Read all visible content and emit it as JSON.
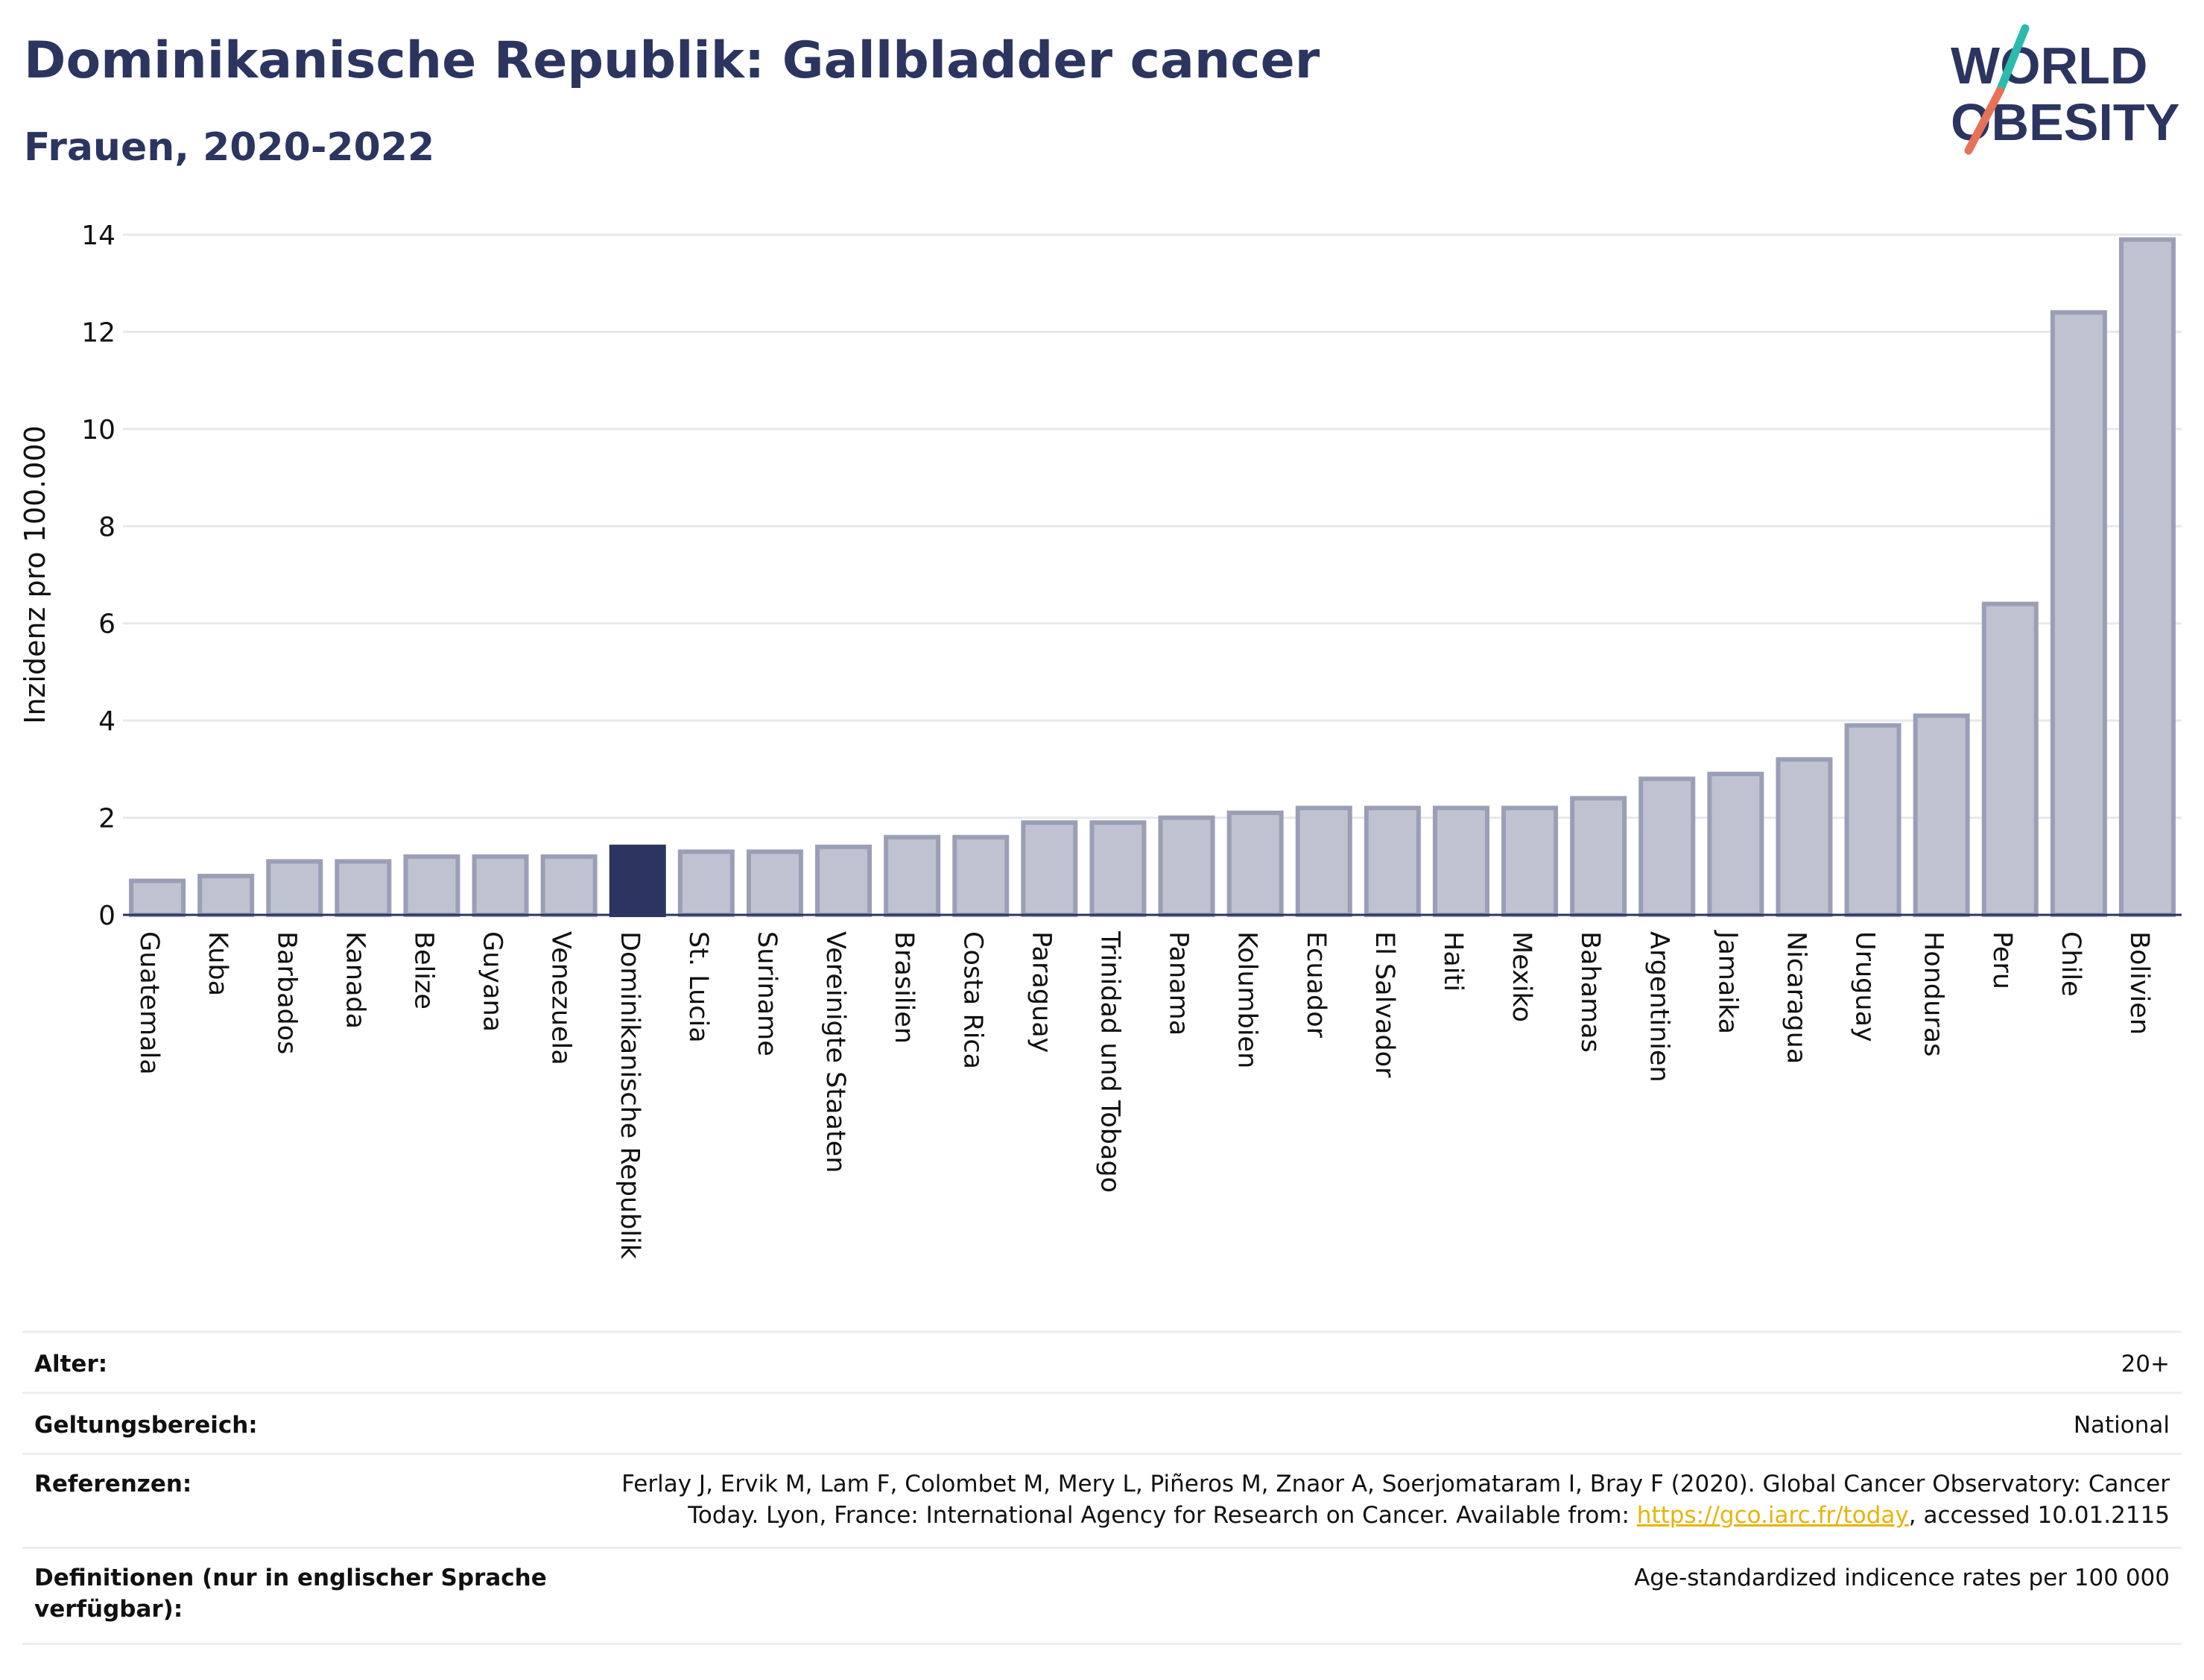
{
  "title": "Dominikanische Republik: Gallbladder cancer",
  "subtitle": "Frauen, 2020-2022",
  "logo": {
    "line1": "WORLD",
    "line2": "OBESITY"
  },
  "colors": {
    "highlight": "#2b3560",
    "bar": "#bfc2d0",
    "bar_border": "#9a9fb6",
    "accent_teal": "#2bbbad",
    "accent_coral": "#e8715a"
  },
  "chart_data": {
    "type": "bar",
    "ylabel": "Inzidenz pro 100.000",
    "xlabel": "",
    "ylim": [
      0,
      14
    ],
    "yticks": [
      0,
      2,
      4,
      6,
      8,
      10,
      12,
      14
    ],
    "grid": true,
    "highlight": "Dominikanische Republik",
    "categories": [
      "Guatemala",
      "Kuba",
      "Barbados",
      "Kanada",
      "Belize",
      "Guyana",
      "Venezuela",
      "Dominikanische Republik",
      "St. Lucia",
      "Suriname",
      "Vereinigte Staaten",
      "Brasilien",
      "Costa Rica",
      "Paraguay",
      "Trinidad und Tobago",
      "Panama",
      "Kolumbien",
      "Ecuador",
      "El Salvador",
      "Haiti",
      "Mexiko",
      "Bahamas",
      "Argentinien",
      "Jamaika",
      "Nicaragua",
      "Uruguay",
      "Honduras",
      "Peru",
      "Chile",
      "Bolivien"
    ],
    "values": [
      0.7,
      0.8,
      1.1,
      1.1,
      1.2,
      1.2,
      1.2,
      1.4,
      1.3,
      1.3,
      1.4,
      1.6,
      1.6,
      1.9,
      1.9,
      2.0,
      2.1,
      2.2,
      2.2,
      2.2,
      2.2,
      2.4,
      2.8,
      2.9,
      3.2,
      3.9,
      4.1,
      6.4,
      12.4,
      13.9
    ]
  },
  "meta": {
    "age_label": "Alter:",
    "age_value": "20+",
    "scope_label": "Geltungsbereich:",
    "scope_value": "National",
    "ref_label": "Referenzen:",
    "ref_line1": "Ferlay J, Ervik M, Lam F, Colombet M, Mery L, Piñeros M, Znaor A, Soerjomataram I, Bray F (2020). Global Cancer Observatory: Cancer",
    "ref_line2_pre": "Today. Lyon, France: International Agency for Research on Cancer. Available from: ",
    "ref_link": "https://gco.iarc.fr/today",
    "ref_line2_post": ", accessed 10.01.2115",
    "def_label_line1": "Definitionen (nur in englischer Sprache",
    "def_label_line2": "verfügbar):",
    "def_value": "Age-standardized indicence rates per 100 000"
  }
}
